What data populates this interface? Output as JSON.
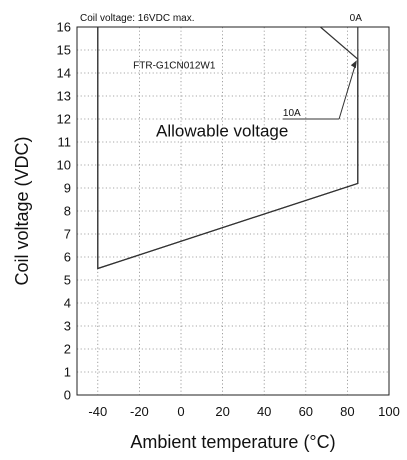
{
  "chart_data": {
    "type": "line",
    "title": "Coil voltage: 16VDC max.",
    "xlabel": "Ambient temperature (°C)",
    "ylabel": "Coil voltage (VDC)",
    "xlim": [
      -50,
      100
    ],
    "ylim": [
      0,
      16
    ],
    "x_ticks": [
      -40,
      -20,
      0,
      20,
      40,
      60,
      80,
      100
    ],
    "y_ticks": [
      0,
      1,
      2,
      3,
      4,
      5,
      6,
      7,
      8,
      9,
      10,
      11,
      12,
      13,
      14,
      15,
      16
    ],
    "grid": true,
    "series": [
      {
        "name": "0A",
        "x": [
          -40,
          -40,
          85,
          85,
          85
        ],
        "y": [
          16,
          5.5,
          9.2,
          14.6,
          16
        ]
      },
      {
        "name": "10A",
        "x": [
          -40,
          -40,
          85,
          85,
          67
        ],
        "y": [
          16,
          5.5,
          9.2,
          14.6,
          16
        ]
      }
    ],
    "annotations": {
      "region_label": "Allowable voltage",
      "model": "FTR-G1CN012W1"
    }
  }
}
